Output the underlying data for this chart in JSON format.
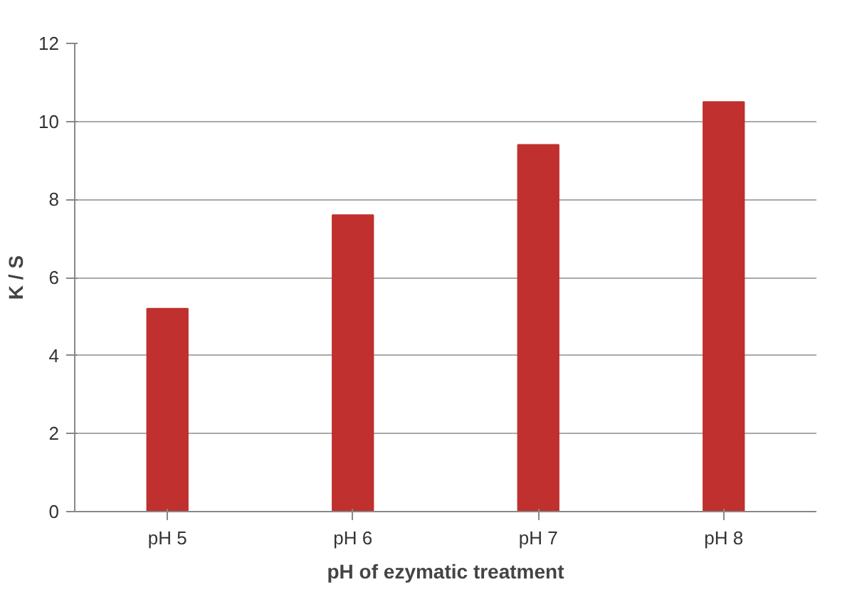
{
  "chart_data": {
    "type": "bar",
    "xlabel": "pH of ezymatic treatment",
    "ylabel": "K / S",
    "categories": [
      "pH 5",
      "pH 6",
      "pH 7",
      "pH 8"
    ],
    "values": [
      5.2,
      7.6,
      9.4,
      10.5
    ],
    "color": "#c0302e",
    "ylim": [
      0,
      12
    ],
    "yticks": [
      0,
      2,
      4,
      6,
      8,
      10,
      12
    ],
    "grid": "y"
  }
}
